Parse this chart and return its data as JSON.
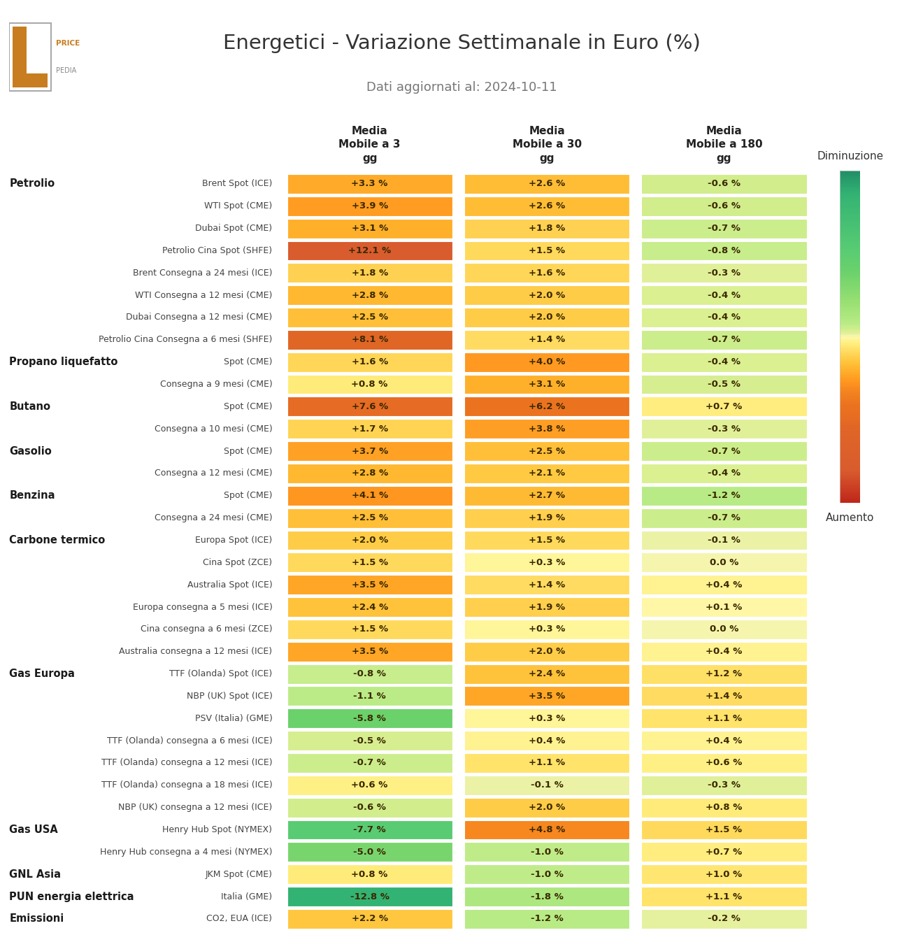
{
  "title": "Energetici - Variazione Settimanale in Euro (%)",
  "subtitle": "Dati aggiornati al: 2024-10-11",
  "col_headers": [
    "Media\nMobile a 3\ngg",
    "Media\nMobile a 30\ngg",
    "Media\nMobile a 180\ngg"
  ],
  "rows": [
    {
      "category": "Petrolio",
      "label": "Brent Spot (ICE)",
      "values": [
        3.3,
        2.6,
        -0.6
      ],
      "texts": [
        "+3.3 %",
        "+2.6 %",
        "-0.6 %"
      ]
    },
    {
      "category": null,
      "label": "WTI Spot (CME)",
      "values": [
        3.9,
        2.6,
        -0.6
      ],
      "texts": [
        "+3.9 %",
        "+2.6 %",
        "-0.6 %"
      ]
    },
    {
      "category": null,
      "label": "Dubai Spot (CME)",
      "values": [
        3.1,
        1.8,
        -0.7
      ],
      "texts": [
        "+3.1 %",
        "+1.8 %",
        "-0.7 %"
      ]
    },
    {
      "category": null,
      "label": "Petrolio Cina Spot (SHFE)",
      "values": [
        12.1,
        1.5,
        -0.8
      ],
      "texts": [
        "+12.1 %",
        "+1.5 %",
        "-0.8 %"
      ]
    },
    {
      "category": null,
      "label": "Brent Consegna a 24 mesi (ICE)",
      "values": [
        1.8,
        1.6,
        -0.3
      ],
      "texts": [
        "+1.8 %",
        "+1.6 %",
        "-0.3 %"
      ]
    },
    {
      "category": null,
      "label": "WTI Consegna a 12 mesi (CME)",
      "values": [
        2.8,
        2.0,
        -0.4
      ],
      "texts": [
        "+2.8 %",
        "+2.0 %",
        "-0.4 %"
      ]
    },
    {
      "category": null,
      "label": "Dubai Consegna a 12 mesi (CME)",
      "values": [
        2.5,
        2.0,
        -0.4
      ],
      "texts": [
        "+2.5 %",
        "+2.0 %",
        "-0.4 %"
      ]
    },
    {
      "category": null,
      "label": "Petrolio Cina Consegna a 6 mesi (SHFE)",
      "values": [
        8.1,
        1.4,
        -0.7
      ],
      "texts": [
        "+8.1 %",
        "+1.4 %",
        "-0.7 %"
      ]
    },
    {
      "category": "Propano liquefatto",
      "label": "Spot (CME)",
      "values": [
        1.6,
        4.0,
        -0.4
      ],
      "texts": [
        "+1.6 %",
        "+4.0 %",
        "-0.4 %"
      ]
    },
    {
      "category": null,
      "label": "Consegna a 9 mesi (CME)",
      "values": [
        0.8,
        3.1,
        -0.5
      ],
      "texts": [
        "+0.8 %",
        "+3.1 %",
        "-0.5 %"
      ]
    },
    {
      "category": "Butano",
      "label": "Spot (CME)",
      "values": [
        7.6,
        6.2,
        0.7
      ],
      "texts": [
        "+7.6 %",
        "+6.2 %",
        "+0.7 %"
      ]
    },
    {
      "category": null,
      "label": "Consegna a 10 mesi (CME)",
      "values": [
        1.7,
        3.8,
        -0.3
      ],
      "texts": [
        "+1.7 %",
        "+3.8 %",
        "-0.3 %"
      ]
    },
    {
      "category": "Gasolio",
      "label": "Spot (CME)",
      "values": [
        3.7,
        2.5,
        -0.7
      ],
      "texts": [
        "+3.7 %",
        "+2.5 %",
        "-0.7 %"
      ]
    },
    {
      "category": null,
      "label": "Consegna a 12 mesi (CME)",
      "values": [
        2.8,
        2.1,
        -0.4
      ],
      "texts": [
        "+2.8 %",
        "+2.1 %",
        "-0.4 %"
      ]
    },
    {
      "category": "Benzina",
      "label": "Spot (CME)",
      "values": [
        4.1,
        2.7,
        -1.2
      ],
      "texts": [
        "+4.1 %",
        "+2.7 %",
        "-1.2 %"
      ]
    },
    {
      "category": null,
      "label": "Consegna a 24 mesi (CME)",
      "values": [
        2.5,
        1.9,
        -0.7
      ],
      "texts": [
        "+2.5 %",
        "+1.9 %",
        "-0.7 %"
      ]
    },
    {
      "category": "Carbone termico",
      "label": "Europa Spot (ICE)",
      "values": [
        2.0,
        1.5,
        -0.1
      ],
      "texts": [
        "+2.0 %",
        "+1.5 %",
        "-0.1 %"
      ]
    },
    {
      "category": null,
      "label": "Cina Spot (ZCE)",
      "values": [
        1.5,
        0.3,
        0.0
      ],
      "texts": [
        "+1.5 %",
        "+0.3 %",
        "0.0 %"
      ]
    },
    {
      "category": null,
      "label": "Australia Spot (ICE)",
      "values": [
        3.5,
        1.4,
        0.4
      ],
      "texts": [
        "+3.5 %",
        "+1.4 %",
        "+0.4 %"
      ]
    },
    {
      "category": null,
      "label": "Europa consegna a 5 mesi (ICE)",
      "values": [
        2.4,
        1.9,
        0.1
      ],
      "texts": [
        "+2.4 %",
        "+1.9 %",
        "+0.1 %"
      ]
    },
    {
      "category": null,
      "label": "Cina consegna a 6 mesi (ZCE)",
      "values": [
        1.5,
        0.3,
        0.0
      ],
      "texts": [
        "+1.5 %",
        "+0.3 %",
        "0.0 %"
      ]
    },
    {
      "category": null,
      "label": "Australia consegna a 12 mesi (ICE)",
      "values": [
        3.5,
        2.0,
        0.4
      ],
      "texts": [
        "+3.5 %",
        "+2.0 %",
        "+0.4 %"
      ]
    },
    {
      "category": "Gas Europa",
      "label": "TTF (Olanda) Spot (ICE)",
      "values": [
        -0.8,
        2.4,
        1.2
      ],
      "texts": [
        "-0.8 %",
        "+2.4 %",
        "+1.2 %"
      ]
    },
    {
      "category": null,
      "label": "NBP (UK) Spot (ICE)",
      "values": [
        -1.1,
        3.5,
        1.4
      ],
      "texts": [
        "-1.1 %",
        "+3.5 %",
        "+1.4 %"
      ]
    },
    {
      "category": null,
      "label": "PSV (Italia) (GME)",
      "values": [
        -5.8,
        0.3,
        1.1
      ],
      "texts": [
        "-5.8 %",
        "+0.3 %",
        "+1.1 %"
      ]
    },
    {
      "category": null,
      "label": "TTF (Olanda) consegna a 6 mesi (ICE)",
      "values": [
        -0.5,
        0.4,
        0.4
      ],
      "texts": [
        "-0.5 %",
        "+0.4 %",
        "+0.4 %"
      ]
    },
    {
      "category": null,
      "label": "TTF (Olanda) consegna a 12 mesi (ICE)",
      "values": [
        -0.7,
        1.1,
        0.6
      ],
      "texts": [
        "-0.7 %",
        "+1.1 %",
        "+0.6 %"
      ]
    },
    {
      "category": null,
      "label": "TTF (Olanda) consegna a 18 mesi (ICE)",
      "values": [
        0.6,
        -0.1,
        -0.3
      ],
      "texts": [
        "+0.6 %",
        "-0.1 %",
        "-0.3 %"
      ]
    },
    {
      "category": null,
      "label": "NBP (UK) consegna a 12 mesi (ICE)",
      "values": [
        -0.6,
        2.0,
        0.8
      ],
      "texts": [
        "-0.6 %",
        "+2.0 %",
        "+0.8 %"
      ]
    },
    {
      "category": "Gas USA",
      "label": "Henry Hub Spot (NYMEX)",
      "values": [
        -7.7,
        4.8,
        1.5
      ],
      "texts": [
        "-7.7 %",
        "+4.8 %",
        "+1.5 %"
      ]
    },
    {
      "category": null,
      "label": "Henry Hub consegna a 4 mesi (NYMEX)",
      "values": [
        -5.0,
        -1.0,
        0.7
      ],
      "texts": [
        "-5.0 %",
        "-1.0 %",
        "+0.7 %"
      ]
    },
    {
      "category": "GNL Asia",
      "label": "JKM Spot (CME)",
      "values": [
        0.8,
        -1.0,
        1.0
      ],
      "texts": [
        "+0.8 %",
        "-1.0 %",
        "+1.0 %"
      ]
    },
    {
      "category": "PUN energia elettrica",
      "label": "Italia (GME)",
      "values": [
        -12.8,
        -1.8,
        1.1
      ],
      "texts": [
        "-12.8 %",
        "-1.8 %",
        "+1.1 %"
      ]
    },
    {
      "category": "Emissioni",
      "label": "CO2, EUA (ICE)",
      "values": [
        2.2,
        -1.2,
        -0.2
      ],
      "texts": [
        "+2.2 %",
        "-1.2 %",
        "-0.2 %"
      ]
    }
  ],
  "colorbar_label_top": "Diminuzione",
  "colorbar_label_bottom": "Aumento",
  "background_color": "#ffffff",
  "cell_text_color": "#3a2800",
  "category_text_color": "#1a1a1a",
  "label_text_color": "#444444",
  "title_color": "#333333",
  "subtitle_color": "#777777",
  "header_color": "#222222",
  "colormap_stops": [
    [
      -15.0,
      [
        0.13,
        0.55,
        0.4
      ]
    ],
    [
      -12.8,
      [
        0.2,
        0.7,
        0.45
      ]
    ],
    [
      -7.7,
      [
        0.35,
        0.8,
        0.45
      ]
    ],
    [
      -5.8,
      [
        0.42,
        0.82,
        0.42
      ]
    ],
    [
      -3.0,
      [
        0.6,
        0.88,
        0.45
      ]
    ],
    [
      -1.2,
      [
        0.72,
        0.92,
        0.52
      ]
    ],
    [
      -0.8,
      [
        0.78,
        0.93,
        0.55
      ]
    ],
    [
      -0.6,
      [
        0.82,
        0.93,
        0.55
      ]
    ],
    [
      -0.4,
      [
        0.86,
        0.94,
        0.57
      ]
    ],
    [
      -0.3,
      [
        0.88,
        0.94,
        0.6
      ]
    ],
    [
      -0.1,
      [
        0.92,
        0.95,
        0.65
      ]
    ],
    [
      0.0,
      [
        0.96,
        0.96,
        0.68
      ]
    ],
    [
      0.1,
      [
        1.0,
        0.97,
        0.65
      ]
    ],
    [
      0.3,
      [
        1.0,
        0.96,
        0.6
      ]
    ],
    [
      0.4,
      [
        1.0,
        0.95,
        0.57
      ]
    ],
    [
      0.6,
      [
        1.0,
        0.94,
        0.52
      ]
    ],
    [
      0.7,
      [
        1.0,
        0.93,
        0.5
      ]
    ],
    [
      0.8,
      [
        1.0,
        0.92,
        0.48
      ]
    ],
    [
      1.0,
      [
        1.0,
        0.9,
        0.44
      ]
    ],
    [
      1.1,
      [
        1.0,
        0.89,
        0.42
      ]
    ],
    [
      1.2,
      [
        1.0,
        0.88,
        0.4
      ]
    ],
    [
      1.4,
      [
        1.0,
        0.86,
        0.38
      ]
    ],
    [
      1.5,
      [
        1.0,
        0.85,
        0.36
      ]
    ],
    [
      1.6,
      [
        1.0,
        0.84,
        0.34
      ]
    ],
    [
      1.8,
      [
        1.0,
        0.82,
        0.32
      ]
    ],
    [
      1.9,
      [
        1.0,
        0.81,
        0.3
      ]
    ],
    [
      2.0,
      [
        1.0,
        0.8,
        0.28
      ]
    ],
    [
      2.1,
      [
        1.0,
        0.79,
        0.26
      ]
    ],
    [
      2.2,
      [
        1.0,
        0.78,
        0.25
      ]
    ],
    [
      2.4,
      [
        1.0,
        0.76,
        0.23
      ]
    ],
    [
      2.5,
      [
        1.0,
        0.75,
        0.22
      ]
    ],
    [
      2.6,
      [
        1.0,
        0.74,
        0.21
      ]
    ],
    [
      2.7,
      [
        1.0,
        0.73,
        0.2
      ]
    ],
    [
      2.8,
      [
        1.0,
        0.72,
        0.19
      ]
    ],
    [
      3.1,
      [
        1.0,
        0.69,
        0.17
      ]
    ],
    [
      3.3,
      [
        1.0,
        0.67,
        0.16
      ]
    ],
    [
      3.5,
      [
        1.0,
        0.65,
        0.15
      ]
    ],
    [
      3.7,
      [
        1.0,
        0.63,
        0.14
      ]
    ],
    [
      3.8,
      [
        1.0,
        0.62,
        0.14
      ]
    ],
    [
      3.9,
      [
        1.0,
        0.61,
        0.13
      ]
    ],
    [
      4.0,
      [
        1.0,
        0.6,
        0.13
      ]
    ],
    [
      4.1,
      [
        1.0,
        0.59,
        0.12
      ]
    ],
    [
      4.8,
      [
        0.97,
        0.53,
        0.12
      ]
    ],
    [
      5.0,
      [
        0.95,
        0.52,
        0.12
      ]
    ],
    [
      6.2,
      [
        0.92,
        0.45,
        0.12
      ]
    ],
    [
      7.6,
      [
        0.9,
        0.42,
        0.14
      ]
    ],
    [
      8.1,
      [
        0.88,
        0.4,
        0.15
      ]
    ],
    [
      12.1,
      [
        0.85,
        0.36,
        0.18
      ]
    ],
    [
      15.0,
      [
        0.75,
        0.15,
        0.1
      ]
    ]
  ]
}
